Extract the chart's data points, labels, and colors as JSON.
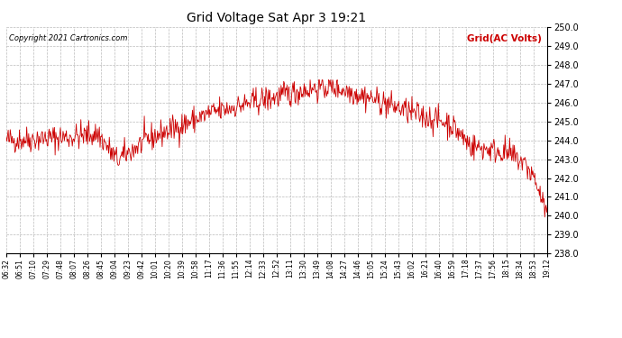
{
  "title": "Grid Voltage Sat Apr 3 19:21",
  "legend_label": "Grid(AC Volts)",
  "copyright": "Copyright 2021 Cartronics.com",
  "line_color": "#cc0000",
  "legend_color": "#cc0000",
  "background_color": "#ffffff",
  "grid_color": "#bbbbbb",
  "ylim": [
    238.0,
    250.0
  ],
  "yticks": [
    238.0,
    239.0,
    240.0,
    241.0,
    242.0,
    243.0,
    244.0,
    245.0,
    246.0,
    247.0,
    248.0,
    249.0,
    250.0
  ],
  "x_tick_labels": [
    "06:32",
    "06:51",
    "07:10",
    "07:29",
    "07:48",
    "08:07",
    "08:26",
    "08:45",
    "09:04",
    "09:23",
    "09:42",
    "10:01",
    "10:20",
    "10:39",
    "10:58",
    "11:17",
    "11:36",
    "11:55",
    "12:14",
    "12:33",
    "12:52",
    "13:11",
    "13:30",
    "13:49",
    "14:08",
    "14:27",
    "14:46",
    "15:05",
    "15:24",
    "15:43",
    "16:02",
    "16:21",
    "16:40",
    "16:59",
    "17:18",
    "17:37",
    "17:56",
    "18:15",
    "18:34",
    "18:53",
    "19:12"
  ],
  "seed": 42,
  "n_points": 820
}
